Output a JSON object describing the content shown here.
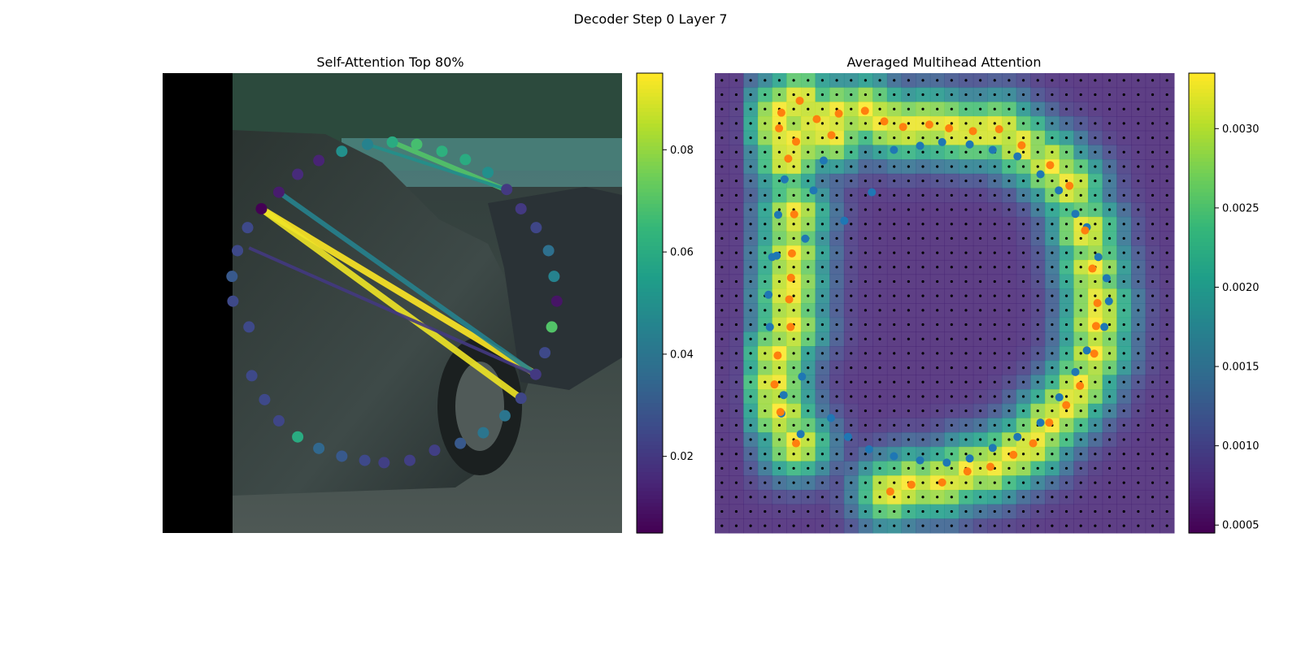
{
  "figure": {
    "suptitle": "Decoder Step 0 Layer 7"
  },
  "colors": {
    "viridis": [
      "#440154",
      "#482878",
      "#3e4989",
      "#31688e",
      "#26828e",
      "#1f9e89",
      "#35b779",
      "#6ece58",
      "#b5de2b",
      "#fde725"
    ],
    "blue_points": "#1f77b4",
    "orange_points": "#ff7f0e",
    "grid_dots": "#000000",
    "photo_left_mask": "#000000"
  },
  "chart_data": [
    {
      "type": "scatter",
      "title": "Self-Attention Top 80%",
      "background": "camera image of a car (photo)",
      "axes_visible": false,
      "xlim": [
        0,
        100
      ],
      "ylim": [
        0,
        100
      ],
      "points": [
        {
          "x": 21.5,
          "y": 70.5,
          "v": 0.005
        },
        {
          "x": 25.3,
          "y": 74.1,
          "v": 0.012
        },
        {
          "x": 29.4,
          "y": 78.0,
          "v": 0.016
        },
        {
          "x": 34.0,
          "y": 81.0,
          "v": 0.014
        },
        {
          "x": 39.0,
          "y": 83.0,
          "v": 0.05
        },
        {
          "x": 44.6,
          "y": 84.5,
          "v": 0.045
        },
        {
          "x": 50.0,
          "y": 85.0,
          "v": 0.06
        },
        {
          "x": 55.3,
          "y": 84.5,
          "v": 0.068
        },
        {
          "x": 60.8,
          "y": 83.0,
          "v": 0.062
        },
        {
          "x": 65.9,
          "y": 81.2,
          "v": 0.06
        },
        {
          "x": 70.8,
          "y": 78.4,
          "v": 0.05
        },
        {
          "x": 74.9,
          "y": 74.7,
          "v": 0.02
        },
        {
          "x": 78.0,
          "y": 70.5,
          "v": 0.02
        },
        {
          "x": 81.3,
          "y": 66.4,
          "v": 0.024
        },
        {
          "x": 84.0,
          "y": 61.4,
          "v": 0.038
        },
        {
          "x": 85.2,
          "y": 55.8,
          "v": 0.045
        },
        {
          "x": 85.8,
          "y": 50.4,
          "v": 0.01
        },
        {
          "x": 84.7,
          "y": 44.8,
          "v": 0.07
        },
        {
          "x": 83.2,
          "y": 39.2,
          "v": 0.025
        },
        {
          "x": 81.2,
          "y": 34.5,
          "v": 0.02
        },
        {
          "x": 78.0,
          "y": 29.3,
          "v": 0.024
        },
        {
          "x": 74.5,
          "y": 25.5,
          "v": 0.04
        },
        {
          "x": 69.8,
          "y": 21.8,
          "v": 0.04
        },
        {
          "x": 64.8,
          "y": 19.5,
          "v": 0.03
        },
        {
          "x": 59.2,
          "y": 18.0,
          "v": 0.022
        },
        {
          "x": 53.8,
          "y": 15.8,
          "v": 0.022
        },
        {
          "x": 48.2,
          "y": 15.3,
          "v": 0.022
        },
        {
          "x": 44.0,
          "y": 15.8,
          "v": 0.025
        },
        {
          "x": 39.0,
          "y": 16.7,
          "v": 0.03
        },
        {
          "x": 34.0,
          "y": 18.4,
          "v": 0.035
        },
        {
          "x": 29.4,
          "y": 20.9,
          "v": 0.06
        },
        {
          "x": 25.3,
          "y": 24.4,
          "v": 0.024
        },
        {
          "x": 22.2,
          "y": 29.0,
          "v": 0.025
        },
        {
          "x": 19.4,
          "y": 34.2,
          "v": 0.025
        },
        {
          "x": 18.8,
          "y": 44.8,
          "v": 0.025
        },
        {
          "x": 15.3,
          "y": 50.4,
          "v": 0.025
        },
        {
          "x": 15.1,
          "y": 55.8,
          "v": 0.03
        },
        {
          "x": 16.3,
          "y": 61.4,
          "v": 0.025
        },
        {
          "x": 18.5,
          "y": 66.4,
          "v": 0.025
        }
      ],
      "attention_lines": [
        {
          "from": [
            21.5,
            70.5
          ],
          "to": [
            81.3,
            34.5
          ],
          "v": 0.095,
          "width": 4
        },
        {
          "from": [
            21.5,
            70.5
          ],
          "to": [
            78.0,
            29.3
          ],
          "v": 0.093,
          "width": 4
        },
        {
          "from": [
            25.3,
            74.1
          ],
          "to": [
            81.3,
            34.5
          ],
          "v": 0.045,
          "width": 3
        },
        {
          "from": [
            50.0,
            85.0
          ],
          "to": [
            74.5,
            74.7
          ],
          "v": 0.07,
          "width": 3
        },
        {
          "from": [
            44.6,
            84.5
          ],
          "to": [
            74.9,
            74.7
          ],
          "v": 0.05,
          "width": 2
        },
        {
          "from": [
            18.8,
            62.0
          ],
          "to": [
            81.0,
            34.5
          ],
          "v": 0.02,
          "width": 2
        }
      ],
      "colorbar": {
        "colormap": "viridis",
        "range": [
          0.005,
          0.095
        ],
        "ticks": [
          0.02,
          0.04,
          0.06,
          0.08
        ],
        "tick_labels": [
          "0.02",
          "0.04",
          "0.06",
          "0.08"
        ]
      }
    },
    {
      "type": "heatmap",
      "title": "Averaged Multihead Attention",
      "axes_visible": false,
      "grid_size": [
        32,
        32
      ],
      "grid_dots": "black dot at every grid cell center",
      "range": [
        0.00045,
        0.00335
      ],
      "series": [
        {
          "color": "blue",
          "points": [
            {
              "x": 15.2,
              "y": 76.9
            },
            {
              "x": 13.8,
              "y": 69.2
            },
            {
              "x": 12.5,
              "y": 60.0
            },
            {
              "x": 11.7,
              "y": 51.8
            },
            {
              "x": 12.0,
              "y": 44.8
            },
            {
              "x": 15.0,
              "y": 30.0
            },
            {
              "x": 18.7,
              "y": 21.5
            },
            {
              "x": 19.0,
              "y": 34.0
            },
            {
              "x": 14.5,
              "y": 26.0
            },
            {
              "x": 13.5,
              "y": 60.3
            },
            {
              "x": 21.5,
              "y": 74.5
            },
            {
              "x": 23.7,
              "y": 81.0
            },
            {
              "x": 28.2,
              "y": 67.9
            },
            {
              "x": 34.2,
              "y": 74.1
            },
            {
              "x": 39.0,
              "y": 83.3
            },
            {
              "x": 44.7,
              "y": 84.2
            },
            {
              "x": 49.5,
              "y": 85.0
            },
            {
              "x": 55.5,
              "y": 84.5
            },
            {
              "x": 60.5,
              "y": 83.3
            },
            {
              "x": 65.9,
              "y": 81.9
            },
            {
              "x": 70.9,
              "y": 78.0
            },
            {
              "x": 74.9,
              "y": 74.5
            },
            {
              "x": 78.5,
              "y": 69.4
            },
            {
              "x": 81.0,
              "y": 66.5
            },
            {
              "x": 83.5,
              "y": 60.0
            },
            {
              "x": 85.3,
              "y": 55.4
            },
            {
              "x": 85.8,
              "y": 50.4
            },
            {
              "x": 84.8,
              "y": 44.8
            },
            {
              "x": 81.0,
              "y": 39.7
            },
            {
              "x": 78.5,
              "y": 35.0
            },
            {
              "x": 75.0,
              "y": 29.5
            },
            {
              "x": 70.9,
              "y": 24.0
            },
            {
              "x": 65.9,
              "y": 20.9
            },
            {
              "x": 60.5,
              "y": 18.5
            },
            {
              "x": 55.5,
              "y": 16.2
            },
            {
              "x": 50.5,
              "y": 15.3
            },
            {
              "x": 44.7,
              "y": 15.8
            },
            {
              "x": 39.0,
              "y": 16.7
            },
            {
              "x": 33.6,
              "y": 18.2
            },
            {
              "x": 29.0,
              "y": 20.9
            },
            {
              "x": 25.3,
              "y": 25.0
            },
            {
              "x": 19.7,
              "y": 64.0
            }
          ]
        },
        {
          "color": "orange",
          "points": [
            {
              "x": 14.5,
              "y": 91.4
            },
            {
              "x": 18.5,
              "y": 94.0
            },
            {
              "x": 22.2,
              "y": 90.0
            },
            {
              "x": 25.4,
              "y": 86.5
            },
            {
              "x": 27.0,
              "y": 91.2
            },
            {
              "x": 32.7,
              "y": 91.8
            },
            {
              "x": 36.9,
              "y": 89.5
            },
            {
              "x": 41.0,
              "y": 88.3
            },
            {
              "x": 46.7,
              "y": 88.8
            },
            {
              "x": 51.0,
              "y": 88.0
            },
            {
              "x": 56.2,
              "y": 87.4
            },
            {
              "x": 61.9,
              "y": 87.8
            },
            {
              "x": 66.8,
              "y": 84.3
            },
            {
              "x": 73.0,
              "y": 80.0
            },
            {
              "x": 77.2,
              "y": 75.5
            },
            {
              "x": 80.6,
              "y": 65.8
            },
            {
              "x": 82.2,
              "y": 57.5
            },
            {
              "x": 83.3,
              "y": 50.0
            },
            {
              "x": 83.0,
              "y": 45.0
            },
            {
              "x": 82.6,
              "y": 39.0
            },
            {
              "x": 79.5,
              "y": 32.0
            },
            {
              "x": 76.5,
              "y": 27.8
            },
            {
              "x": 72.8,
              "y": 24.0
            },
            {
              "x": 69.3,
              "y": 19.5
            },
            {
              "x": 65.0,
              "y": 17.0
            },
            {
              "x": 60.0,
              "y": 14.4
            },
            {
              "x": 55.0,
              "y": 13.4
            },
            {
              "x": 49.5,
              "y": 11.0
            },
            {
              "x": 42.8,
              "y": 10.5
            },
            {
              "x": 38.2,
              "y": 9.0
            },
            {
              "x": 17.7,
              "y": 19.5
            },
            {
              "x": 14.3,
              "y": 26.3
            },
            {
              "x": 13.0,
              "y": 32.3
            },
            {
              "x": 13.7,
              "y": 38.6
            },
            {
              "x": 16.5,
              "y": 44.8
            },
            {
              "x": 16.2,
              "y": 50.8
            },
            {
              "x": 16.6,
              "y": 55.5
            },
            {
              "x": 16.8,
              "y": 60.8
            },
            {
              "x": 17.3,
              "y": 69.3
            },
            {
              "x": 16.0,
              "y": 81.4
            },
            {
              "x": 14.0,
              "y": 88.0
            },
            {
              "x": 17.7,
              "y": 85.1
            }
          ]
        }
      ],
      "colorbar": {
        "colormap": "viridis",
        "range": [
          0.00045,
          0.00335
        ],
        "ticks": [
          0.0005,
          0.001,
          0.0015,
          0.002,
          0.0025,
          0.003
        ],
        "tick_labels": [
          "0.0005",
          "0.0010",
          "0.0015",
          "0.0020",
          "0.0025",
          "0.0030"
        ]
      }
    }
  ]
}
